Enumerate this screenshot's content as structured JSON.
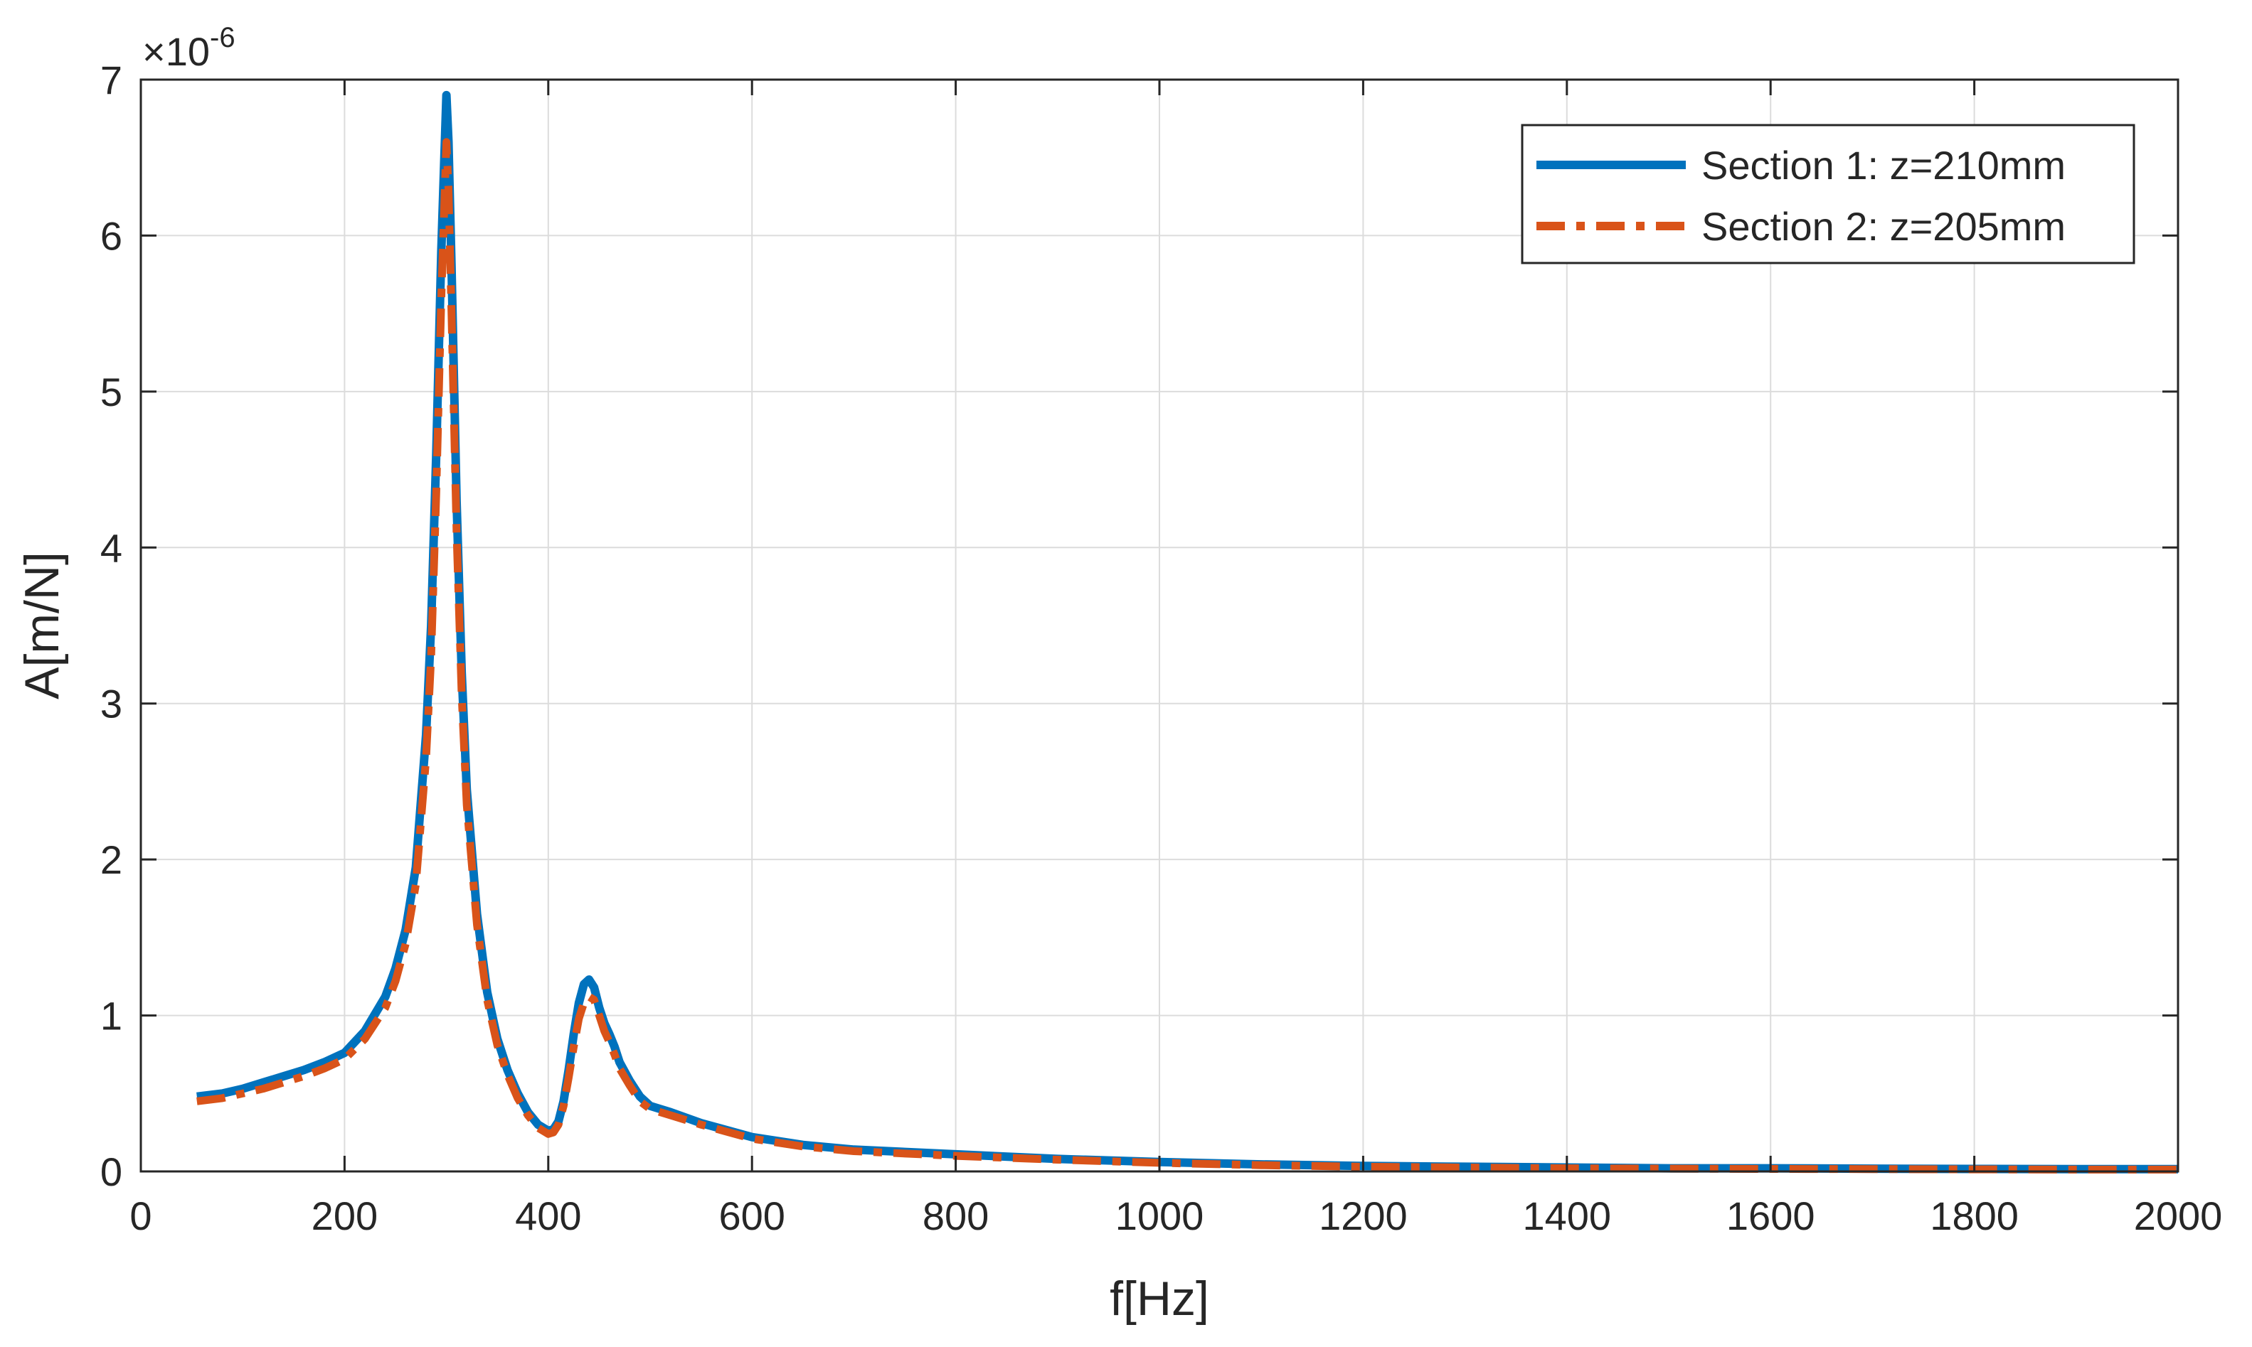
{
  "chart_data": {
    "type": "line",
    "title": "",
    "xlabel": "f[Hz]",
    "ylabel": "A[m/N]",
    "y_multiplier": "×10",
    "y_exponent": "-6",
    "xlim": [
      0,
      2000
    ],
    "ylim": [
      0,
      7
    ],
    "x_ticks": [
      "0",
      "200",
      "400",
      "600",
      "800",
      "1000",
      "1200",
      "1400",
      "1600",
      "1800",
      "2000"
    ],
    "y_ticks": [
      "0",
      "1",
      "2",
      "3",
      "4",
      "5",
      "6",
      "7"
    ],
    "grid": true,
    "legend_position": "top-right",
    "series": [
      {
        "name": "Section 1: z=210mm",
        "color": "#0072BD",
        "line_style": "solid",
        "x": [
          55,
          80,
          100,
          120,
          140,
          160,
          180,
          200,
          220,
          240,
          250,
          260,
          270,
          280,
          285,
          290,
          295,
          298,
          300,
          302,
          305,
          310,
          315,
          320,
          330,
          340,
          350,
          360,
          370,
          380,
          390,
          400,
          405,
          410,
          415,
          420,
          425,
          430,
          435,
          440,
          445,
          450,
          455,
          460,
          465,
          470,
          480,
          490,
          500,
          520,
          550,
          600,
          650,
          700,
          800,
          900,
          1000,
          1100,
          1200,
          1300,
          1400,
          1500,
          1600,
          1700,
          1800,
          1900,
          2000
        ],
        "values": [
          0.48,
          0.5,
          0.53,
          0.57,
          0.61,
          0.65,
          0.7,
          0.76,
          0.9,
          1.12,
          1.3,
          1.55,
          1.95,
          2.8,
          3.5,
          4.6,
          5.9,
          6.5,
          6.9,
          6.6,
          5.8,
          4.3,
          3.2,
          2.45,
          1.65,
          1.15,
          0.85,
          0.65,
          0.5,
          0.38,
          0.3,
          0.26,
          0.27,
          0.32,
          0.45,
          0.65,
          0.88,
          1.08,
          1.2,
          1.23,
          1.18,
          1.05,
          0.95,
          0.88,
          0.8,
          0.7,
          0.58,
          0.48,
          0.42,
          0.38,
          0.31,
          0.22,
          0.17,
          0.14,
          0.11,
          0.08,
          0.06,
          0.045,
          0.035,
          0.03,
          0.025,
          0.02,
          0.02,
          0.018,
          0.016,
          0.015,
          0.015
        ]
      },
      {
        "name": "Section 2: z=205mm",
        "color": "#D95319",
        "line_style": "dash-dot",
        "x": [
          55,
          80,
          100,
          120,
          140,
          160,
          180,
          200,
          220,
          240,
          250,
          260,
          270,
          280,
          285,
          290,
          295,
          298,
          300,
          302,
          305,
          310,
          315,
          320,
          330,
          340,
          350,
          360,
          370,
          380,
          390,
          400,
          405,
          410,
          415,
          420,
          425,
          430,
          435,
          440,
          445,
          450,
          455,
          460,
          465,
          470,
          480,
          490,
          500,
          520,
          550,
          600,
          650,
          700,
          800,
          900,
          1000,
          1100,
          1200,
          1300,
          1400,
          1500,
          1600,
          1700,
          1800,
          1900,
          2000
        ],
        "values": [
          0.45,
          0.47,
          0.5,
          0.53,
          0.57,
          0.61,
          0.66,
          0.72,
          0.85,
          1.05,
          1.22,
          1.46,
          1.84,
          2.65,
          3.3,
          4.35,
          5.6,
          6.2,
          6.6,
          6.3,
          5.5,
          4.1,
          3.05,
          2.35,
          1.58,
          1.1,
          0.81,
          0.62,
          0.47,
          0.36,
          0.28,
          0.24,
          0.25,
          0.3,
          0.42,
          0.6,
          0.8,
          0.98,
          1.08,
          1.12,
          1.1,
          1.0,
          0.9,
          0.83,
          0.75,
          0.66,
          0.55,
          0.45,
          0.4,
          0.36,
          0.3,
          0.21,
          0.16,
          0.13,
          0.1,
          0.075,
          0.055,
          0.04,
          0.03,
          0.025,
          0.02,
          0.018,
          0.016,
          0.015,
          0.013,
          0.012,
          0.012
        ]
      }
    ]
  }
}
